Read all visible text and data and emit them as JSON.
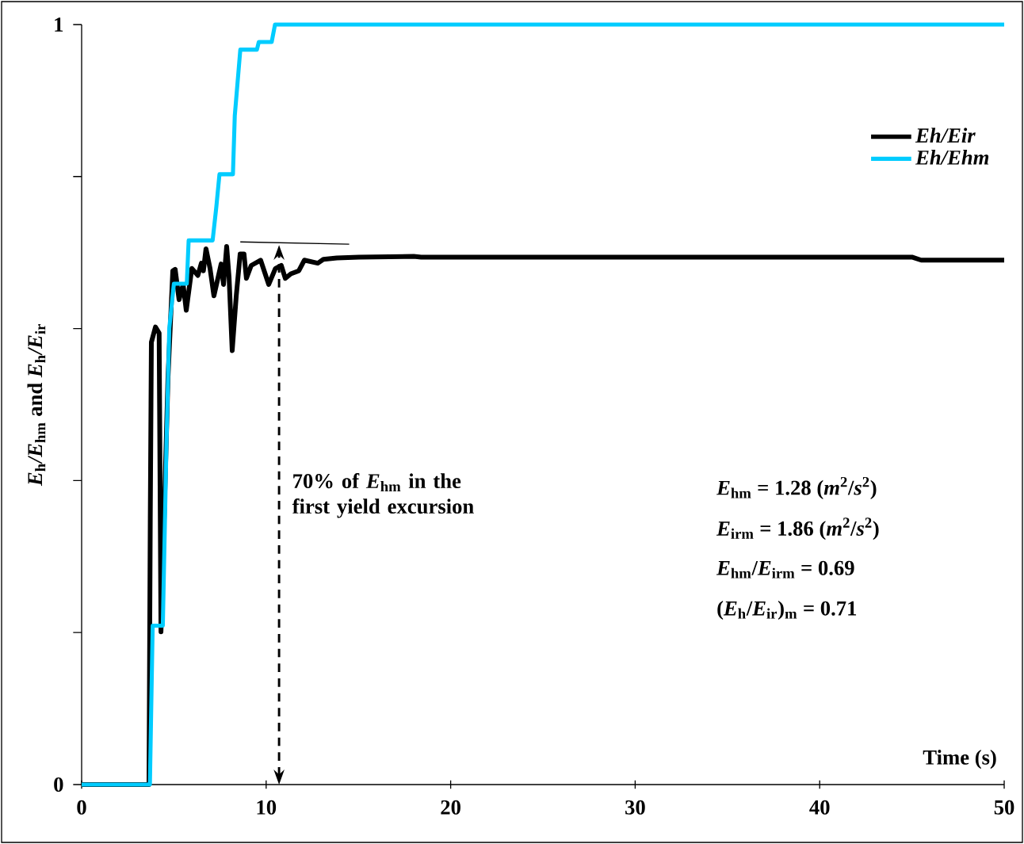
{
  "chart_data": {
    "type": "line",
    "xlabel": "Time (s)",
    "ylabel": "*E*$_{h}$*/E*$_{hm}$ and *E*$_{h}$*/E*$_{ir}$",
    "xlim": [
      0,
      50
    ],
    "ylim": [
      0,
      1
    ],
    "xticks": [
      0,
      10,
      20,
      30,
      40,
      50
    ],
    "yticks": [
      0,
      {
        "value": 0.2,
        "label": null
      },
      {
        "value": 0.4,
        "label": null
      },
      {
        "value": 0.6,
        "label": null
      },
      {
        "value": 0.8,
        "label": null
      },
      1
    ],
    "grid": false,
    "legend": "top right",
    "marker": "none",
    "line_style": "solid",
    "series": [
      {
        "name": "Eh/Eir",
        "color": "#000000",
        "x": [
          0,
          3.65,
          3.72,
          3.78,
          4.0,
          4.2,
          4.3,
          4.68,
          4.94,
          5.07,
          5.28,
          5.5,
          5.67,
          5.97,
          6.3,
          6.49,
          6.6,
          6.74,
          6.96,
          7.17,
          7.56,
          7.69,
          7.86,
          7.99,
          8.16,
          8.38,
          8.59,
          8.8,
          8.93,
          9.19,
          9.7,
          10.14,
          10.5,
          10.82,
          11.04,
          11.34,
          11.77,
          12.07,
          12.8,
          13.1,
          13.83,
          15.03,
          18.0,
          18.4,
          45.0,
          45.5,
          50
        ],
        "values": [
          0,
          0,
          0.35,
          0.582,
          0.602,
          0.594,
          0.201,
          0.535,
          0.676,
          0.678,
          0.638,
          0.658,
          0.624,
          0.679,
          0.67,
          0.686,
          0.676,
          0.705,
          0.679,
          0.643,
          0.685,
          0.658,
          0.708,
          0.668,
          0.571,
          0.643,
          0.698,
          0.698,
          0.666,
          0.683,
          0.69,
          0.658,
          0.679,
          0.683,
          0.666,
          0.672,
          0.676,
          0.69,
          0.686,
          0.691,
          0.693,
          0.694,
          0.695,
          0.694,
          0.694,
          0.69,
          0.69
        ]
      },
      {
        "name": "Eh/Ehm",
        "color": "#00ccff",
        "x": [
          0,
          3.7,
          3.85,
          4.4,
          4.6,
          4.75,
          5.0,
          5.7,
          5.8,
          7.1,
          7.3,
          7.47,
          8.2,
          8.3,
          8.6,
          9.5,
          9.6,
          10.3,
          10.48,
          50
        ],
        "values": [
          0,
          0,
          0.209,
          0.209,
          0.45,
          0.6,
          0.659,
          0.659,
          0.716,
          0.716,
          0.76,
          0.803,
          0.803,
          0.88,
          0.967,
          0.967,
          0.977,
          0.977,
          1,
          1
        ]
      }
    ],
    "annotations": [
      "70% of *E*$_{hm}$ in the first yield excursion",
      "*E*$_{hm}$ = 1.28 (*m*$^{2}$/*s*$^{2}$)",
      "*E*$_{irm}$ = 1.86 (*m*$^{2}$/*s*$^{2}$)",
      "*E*$_{hm}$/*E*$_{irm}$ = 0.69",
      "(*E*$_{h}$/*E*$_{ir}$)$_{m}$ = 0.71"
    ]
  }
}
